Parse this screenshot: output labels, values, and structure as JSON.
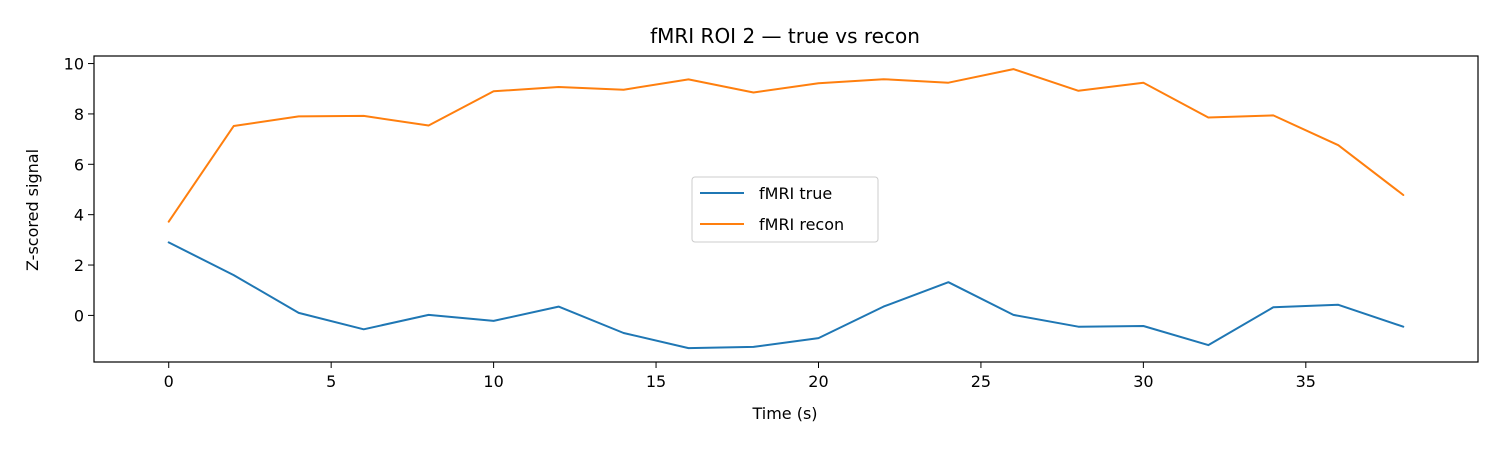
{
  "chart_data": {
    "type": "line",
    "title": "fMRI ROI 2 — true vs recon",
    "xlabel": "Time (s)",
    "ylabel": "Z-scored signal",
    "xlim": [
      -2.3,
      40.3
    ],
    "ylim": [
      -1.85,
      10.3
    ],
    "xticks": [
      0,
      5,
      10,
      15,
      20,
      25,
      30,
      35
    ],
    "yticks": [
      0,
      2,
      4,
      6,
      8,
      10
    ],
    "grid": false,
    "legend_position": "center",
    "x": [
      0,
      2,
      4,
      6,
      8,
      10,
      12,
      14,
      16,
      18,
      20,
      22,
      24,
      26,
      28,
      30,
      32,
      34,
      36,
      38
    ],
    "series": [
      {
        "name": "fMRI true",
        "color": "#1f77b4",
        "values": [
          2.9,
          1.6,
          0.1,
          -0.55,
          0.02,
          -0.22,
          0.35,
          -0.7,
          -1.3,
          -1.25,
          -0.9,
          0.35,
          1.32,
          0.02,
          -0.45,
          -0.42,
          -1.18,
          0.32,
          0.42,
          -0.45
        ]
      },
      {
        "name": "fMRI recon",
        "color": "#ff7f0e",
        "values": [
          3.72,
          7.52,
          7.9,
          7.92,
          7.54,
          8.9,
          9.07,
          8.96,
          9.37,
          8.85,
          9.22,
          9.38,
          9.24,
          9.78,
          8.92,
          9.24,
          7.86,
          7.94,
          6.76,
          4.78
        ]
      }
    ]
  }
}
